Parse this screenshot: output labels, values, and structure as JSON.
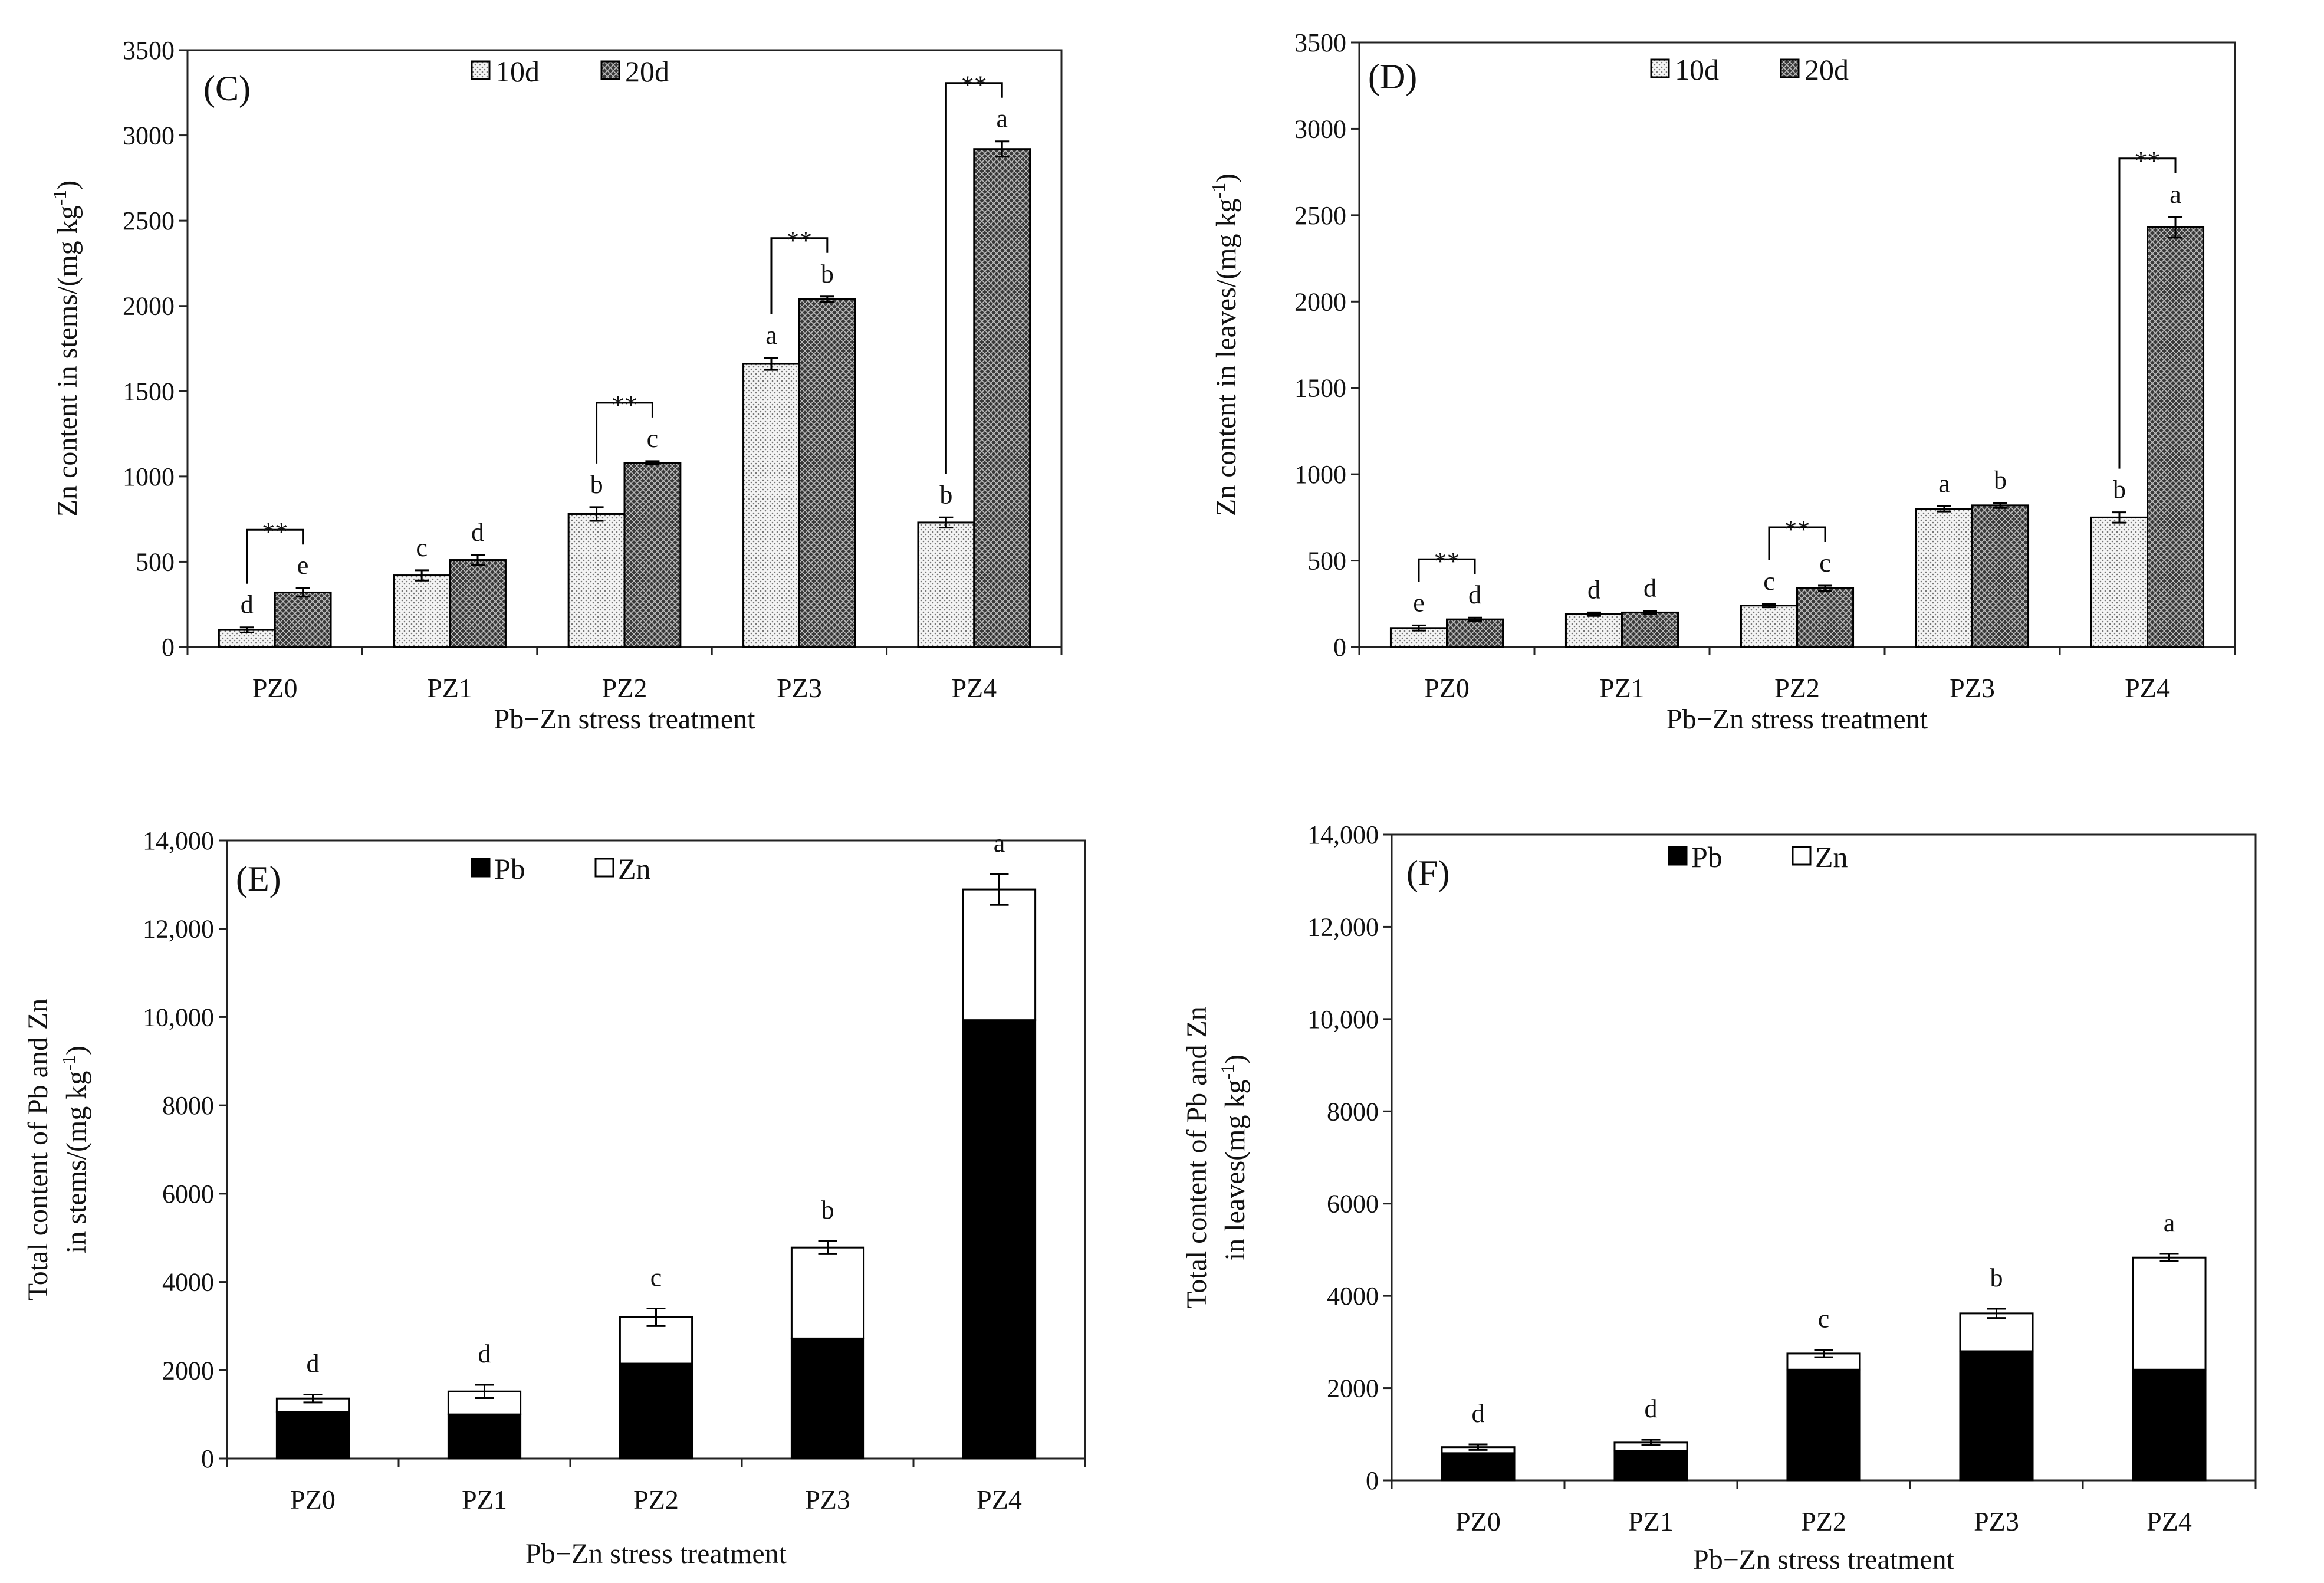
{
  "chart_data": [
    {
      "type": "bar",
      "panel": "(C)",
      "ylabel": "Zn content in stems/(mg kg",
      "ylabel_sup": "-1",
      "ylabel_end": ")",
      "xlabel": "Pb−Zn stress treatment",
      "categories": [
        "PZ0",
        "PZ1",
        "PZ2",
        "PZ3",
        "PZ4"
      ],
      "ylim": [
        0,
        3500
      ],
      "yticks": [
        "0",
        "500",
        "1000",
        "1500",
        "2000",
        "2500",
        "3000",
        "3500"
      ],
      "series": [
        {
          "name": "10d",
          "values": [
            100,
            420,
            780,
            1660,
            730
          ],
          "errors": [
            15,
            30,
            40,
            35,
            30
          ],
          "letters": [
            "d",
            "c",
            "b",
            "a",
            "b"
          ]
        },
        {
          "name": "20d",
          "values": [
            320,
            510,
            1080,
            2040,
            2920
          ],
          "errors": [
            25,
            30,
            10,
            15,
            45
          ],
          "letters": [
            "e",
            "d",
            "c",
            "b",
            "a"
          ]
        }
      ],
      "significance": [
        "**",
        "",
        "**",
        "**",
        "**"
      ]
    },
    {
      "type": "bar",
      "panel": "(D)",
      "ylabel": "Zn content in leaves/(mg kg",
      "ylabel_sup": "-1",
      "ylabel_end": ")",
      "xlabel": "Pb−Zn stress treatment",
      "categories": [
        "PZ0",
        "PZ1",
        "PZ2",
        "PZ3",
        "PZ4"
      ],
      "ylim": [
        0,
        3500
      ],
      "yticks": [
        "0",
        "500",
        "1000",
        "1500",
        "2000",
        "2500",
        "3000",
        "3500"
      ],
      "series": [
        {
          "name": "10d",
          "values": [
            110,
            190,
            240,
            800,
            750
          ],
          "errors": [
            15,
            10,
            10,
            15,
            30
          ],
          "letters": [
            "e",
            "d",
            "c",
            "a",
            "b"
          ]
        },
        {
          "name": "20d",
          "values": [
            160,
            200,
            340,
            820,
            2430
          ],
          "errors": [
            10,
            10,
            15,
            15,
            60
          ],
          "letters": [
            "d",
            "d",
            "c",
            "b",
            "a"
          ]
        }
      ],
      "significance": [
        "**",
        "",
        "**",
        "",
        "**"
      ]
    },
    {
      "type": "stacked-bar",
      "panel": "(E)",
      "ylabel_line1": "Total content of Pb and Zn",
      "ylabel_line2": "in stems/(mg kg",
      "ylabel_sup": "-1",
      "ylabel_end": ")",
      "xlabel": "Pb−Zn stress treatment",
      "categories": [
        "PZ0",
        "PZ1",
        "PZ2",
        "PZ3",
        "PZ4"
      ],
      "ylim": [
        0,
        14000
      ],
      "yticks": [
        "0",
        "2000",
        "4000",
        "6000",
        "8000",
        "10,000",
        "12,000",
        "14,000"
      ],
      "series": [
        {
          "name": "Pb",
          "values": [
            1050,
            1000,
            2150,
            2720,
            9930
          ]
        },
        {
          "name": "Zn",
          "values": [
            310,
            520,
            1050,
            2060,
            2960
          ]
        }
      ],
      "totals": [
        1360,
        1520,
        3200,
        4780,
        12890
      ],
      "errors": [
        90,
        150,
        200,
        150,
        350
      ],
      "letters": [
        "d",
        "d",
        "c",
        "b",
        "a"
      ]
    },
    {
      "type": "stacked-bar",
      "panel": "(F)",
      "ylabel_line1": "Total content of Pb and Zn",
      "ylabel_line2": "in leaves(mg kg",
      "ylabel_sup": "-1",
      "ylabel_end": ")",
      "xlabel": "Pb−Zn stress treatment",
      "categories": [
        "PZ0",
        "PZ1",
        "PZ2",
        "PZ3",
        "PZ4"
      ],
      "ylim": [
        0,
        14000
      ],
      "yticks": [
        "0",
        "2000",
        "4000",
        "6000",
        "8000",
        "10,000",
        "12,000",
        "14,000"
      ],
      "series": [
        {
          "name": "Pb",
          "values": [
            590,
            640,
            2400,
            2800,
            2400
          ]
        },
        {
          "name": "Zn",
          "values": [
            130,
            180,
            350,
            820,
            2430
          ]
        }
      ],
      "totals": [
        720,
        820,
        2750,
        3620,
        4830
      ],
      "errors": [
        60,
        60,
        80,
        100,
        80
      ],
      "letters": [
        "d",
        "d",
        "c",
        "b",
        "a"
      ]
    }
  ],
  "colors": {
    "bar_10d_fill": "#ececec",
    "bar_20d_fill": "#5a5a5a",
    "pb_fill": "#000000",
    "zn_fill": "#ffffff"
  }
}
